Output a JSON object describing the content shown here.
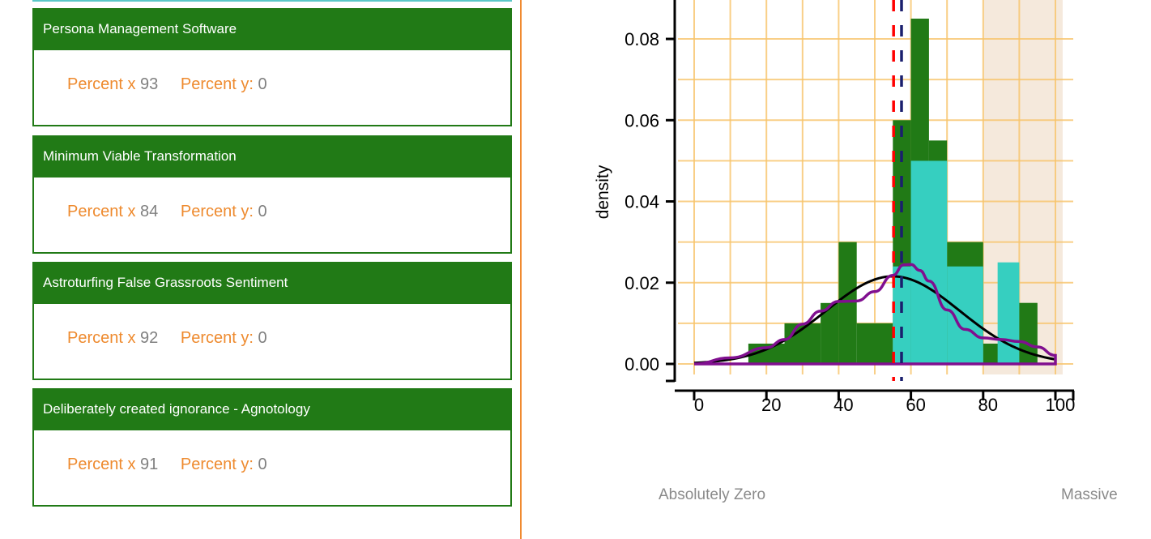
{
  "cards": [
    {
      "title": "Persona Management Software",
      "x_label": "Percent x",
      "x_value": "93",
      "y_label": "Percent y:",
      "y_value": "0"
    },
    {
      "title": "Minimum Viable Transformation",
      "x_label": "Percent x",
      "x_value": "84",
      "y_label": "Percent y:",
      "y_value": "0"
    },
    {
      "title": "Astroturfing False Grassroots Sentiment",
      "x_label": "Percent x",
      "x_value": "92",
      "y_label": "Percent y:",
      "y_value": "0"
    },
    {
      "title": "Deliberately created ignorance - Agnotology",
      "x_label": "Percent x",
      "x_value": "91",
      "y_label": "Percent y:",
      "y_value": "0"
    }
  ],
  "scale_labels": {
    "low": "Absolutely Zero",
    "high": "Massive"
  },
  "colors": {
    "header": "#217a16",
    "accent": "#ee8a2e",
    "bar_primary": "#217a16",
    "bar_secondary": "#36cfc0",
    "normal_curve": "#000000",
    "density_curve": "#800f8f",
    "mean_line": "#ff0000",
    "median_line": "#1a1f6e",
    "highlight_region": "#f5e9dc",
    "grid": "#f8c46a"
  },
  "chart_data": {
    "type": "bar",
    "xlabel": "",
    "ylabel": "density",
    "xlim": [
      0,
      100
    ],
    "ylim": [
      0,
      0.09
    ],
    "x_ticks": [
      "0",
      "20",
      "40",
      "60",
      "80",
      "100"
    ],
    "y_ticks": [
      "0.00",
      "0.02",
      "0.04",
      "0.06",
      "0.08"
    ],
    "grid": true,
    "histogram_green": [
      {
        "x0": 15,
        "x1": 25,
        "density": 0.005
      },
      {
        "x0": 25,
        "x1": 35,
        "density": 0.01
      },
      {
        "x0": 35,
        "x1": 40,
        "density": 0.015
      },
      {
        "x0": 40,
        "x1": 45,
        "density": 0.03
      },
      {
        "x0": 45,
        "x1": 55,
        "density": 0.01
      },
      {
        "x0": 55,
        "x1": 60,
        "density": 0.06
      },
      {
        "x0": 60,
        "x1": 65,
        "density": 0.085
      },
      {
        "x0": 65,
        "x1": 70,
        "density": 0.055
      },
      {
        "x0": 70,
        "x1": 80,
        "density": 0.03
      },
      {
        "x0": 80,
        "x1": 85,
        "density": 0.005
      },
      {
        "x0": 90,
        "x1": 95,
        "density": 0.015
      }
    ],
    "histogram_cyan": [
      {
        "x0": 55,
        "x1": 60,
        "density": 0.024
      },
      {
        "x0": 60,
        "x1": 70,
        "density": 0.05
      },
      {
        "x0": 70,
        "x1": 80,
        "density": 0.024
      },
      {
        "x0": 84,
        "x1": 90,
        "density": 0.025
      }
    ],
    "normal_curve": {
      "mean": 55,
      "sd": 18.5
    },
    "density_curve": {
      "x": [
        0,
        10,
        20,
        25,
        30,
        35,
        40,
        45,
        50,
        55,
        58,
        60,
        62.5,
        65,
        70,
        75,
        80,
        85,
        90,
        95,
        100
      ],
      "y": [
        0,
        0.0015,
        0.004,
        0.006,
        0.0098,
        0.013,
        0.0154,
        0.0155,
        0.0178,
        0.0218,
        0.0244,
        0.0245,
        0.023,
        0.0204,
        0.0133,
        0.0085,
        0.0064,
        0.006,
        0.0055,
        0.0042,
        0.0021
      ]
    },
    "vertical_lines": [
      {
        "x": 55.2,
        "style": "dashed",
        "color": "#ff0000"
      },
      {
        "x": 57.4,
        "style": "dashed",
        "color": "#1a1f6e"
      }
    ],
    "highlight_range": [
      80,
      102
    ]
  }
}
